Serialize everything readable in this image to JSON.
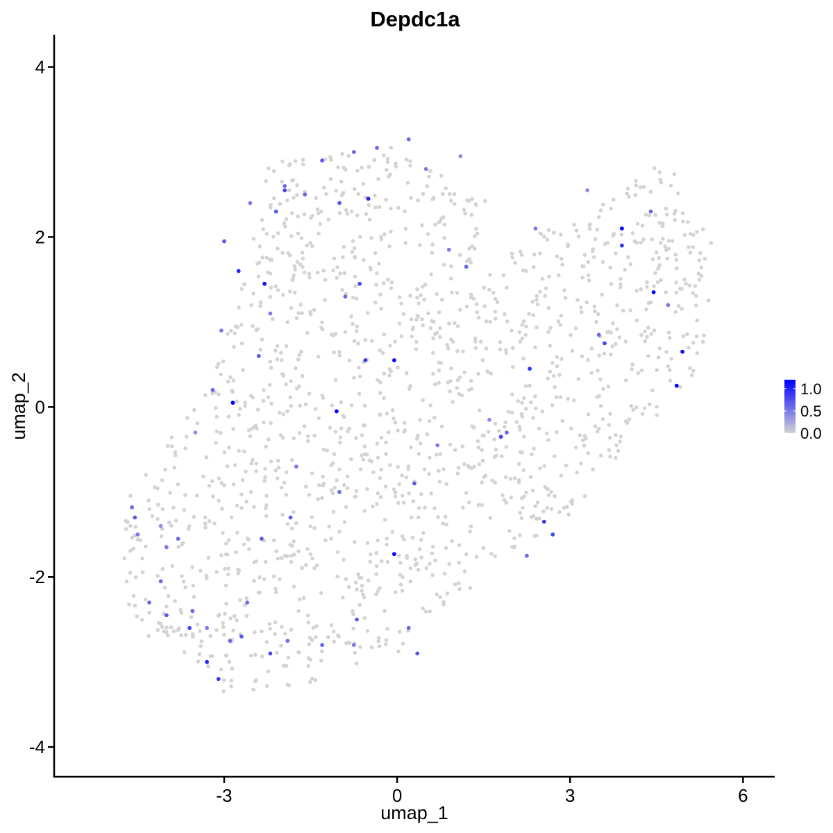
{
  "chart_data": {
    "type": "scatter",
    "title": "Depdc1a",
    "xlabel": "umap_1",
    "ylabel": "umap_2",
    "xlim": [
      -5.95,
      6.55
    ],
    "ylim": [
      -4.35,
      4.38
    ],
    "x_ticks": [
      -3,
      0,
      3,
      6
    ],
    "x_tick_labels": [
      "-3",
      "0",
      "3",
      "6"
    ],
    "y_ticks": [
      -4,
      -2,
      0,
      2,
      4
    ],
    "y_tick_labels": [
      "-4",
      "-2",
      "0",
      "2",
      "4"
    ],
    "grid": false,
    "legend": {
      "type": "colorbar",
      "placement": "right",
      "range": [
        0,
        1.2
      ],
      "ticks": [
        0.0,
        0.5,
        1.0
      ],
      "tick_labels": [
        "0.0",
        "0.5",
        "1.0"
      ]
    },
    "colors": {
      "low": "#D3D3D3",
      "high": "#0000FF"
    },
    "point_count_approx": 1600,
    "expressed_points": [
      [
        -4.6,
        -1.18,
        0.6
      ],
      [
        -4.55,
        -1.3,
        0.7
      ],
      [
        -4.5,
        -1.5,
        0.5
      ],
      [
        -4.1,
        -1.4,
        0.4
      ],
      [
        -4.0,
        -1.65,
        0.5
      ],
      [
        -4.1,
        -2.05,
        0.6
      ],
      [
        -4.0,
        -2.45,
        0.7
      ],
      [
        -3.6,
        -2.6,
        0.8
      ],
      [
        -3.3,
        -3.0,
        1.0
      ],
      [
        -3.1,
        -3.2,
        0.9
      ],
      [
        -2.9,
        -2.75,
        0.6
      ],
      [
        -2.6,
        -2.3,
        0.6
      ],
      [
        -2.7,
        -2.7,
        0.7
      ],
      [
        -2.2,
        -2.9,
        0.8
      ],
      [
        -1.9,
        -2.75,
        0.6
      ],
      [
        -1.3,
        -2.8,
        0.6
      ],
      [
        -0.7,
        -2.5,
        0.7
      ],
      [
        -0.75,
        -2.8,
        0.5
      ],
      [
        0.2,
        -2.6,
        0.6
      ],
      [
        0.35,
        -2.9,
        0.7
      ],
      [
        -0.05,
        -1.73,
        1.2
      ],
      [
        -1.05,
        -0.05,
        1.2
      ],
      [
        -2.85,
        0.05,
        1.2
      ],
      [
        -2.75,
        1.6,
        1.0
      ],
      [
        -2.3,
        1.45,
        1.1
      ],
      [
        -2.4,
        0.6,
        0.7
      ],
      [
        -0.55,
        0.55,
        0.9
      ],
      [
        -0.05,
        0.55,
        1.2
      ],
      [
        -0.5,
        2.45,
        1.0
      ],
      [
        0.2,
        3.15,
        0.6
      ],
      [
        -0.35,
        3.05,
        0.6
      ],
      [
        -0.75,
        3.0,
        0.6
      ],
      [
        -1.3,
        2.9,
        0.7
      ],
      [
        -1.95,
        2.6,
        0.6
      ],
      [
        -2.55,
        2.4,
        0.5
      ],
      [
        -3.0,
        1.95,
        0.7
      ],
      [
        -3.05,
        0.9,
        0.5
      ],
      [
        -3.2,
        0.2,
        0.6
      ],
      [
        -3.5,
        -0.3,
        0.4
      ],
      [
        -1.75,
        -0.7,
        0.5
      ],
      [
        -1.0,
        -1.0,
        0.6
      ],
      [
        0.3,
        -0.9,
        0.7
      ],
      [
        0.7,
        -0.45,
        0.5
      ],
      [
        1.6,
        -0.15,
        0.4
      ],
      [
        1.8,
        -0.35,
        0.8
      ],
      [
        1.9,
        -0.3,
        0.6
      ],
      [
        2.3,
        0.45,
        0.9
      ],
      [
        2.55,
        -1.35,
        0.9
      ],
      [
        2.7,
        -1.5,
        0.8
      ],
      [
        2.25,
        -1.75,
        0.6
      ],
      [
        3.5,
        0.85,
        0.6
      ],
      [
        3.6,
        0.75,
        0.8
      ],
      [
        3.9,
        2.1,
        1.2
      ],
      [
        3.9,
        1.9,
        0.9
      ],
      [
        4.4,
        2.3,
        0.6
      ],
      [
        4.45,
        1.35,
        1.2
      ],
      [
        4.85,
        0.25,
        1.2
      ],
      [
        4.95,
        0.65,
        1.2
      ],
      [
        4.7,
        1.2,
        0.5
      ],
      [
        3.3,
        2.55,
        0.4
      ],
      [
        2.4,
        2.1,
        0.5
      ],
      [
        1.2,
        1.65,
        0.6
      ],
      [
        0.9,
        1.85,
        0.5
      ],
      [
        0.5,
        2.8,
        0.5
      ],
      [
        1.1,
        2.95,
        0.4
      ],
      [
        -1.95,
        2.55,
        0.8
      ],
      [
        -1.6,
        2.5,
        0.6
      ],
      [
        -1.0,
        2.4,
        0.7
      ],
      [
        -0.9,
        1.3,
        0.6
      ],
      [
        -0.65,
        1.45,
        0.8
      ],
      [
        -2.1,
        2.3,
        0.7
      ],
      [
        -2.2,
        1.1,
        0.5
      ],
      [
        -1.85,
        -1.3,
        0.7
      ],
      [
        -3.3,
        -2.6,
        0.5
      ],
      [
        -3.55,
        -2.4,
        0.6
      ],
      [
        -2.35,
        -1.55,
        0.7
      ],
      [
        -3.8,
        -1.55,
        0.6
      ],
      [
        -4.3,
        -2.3,
        0.6
      ]
    ]
  }
}
